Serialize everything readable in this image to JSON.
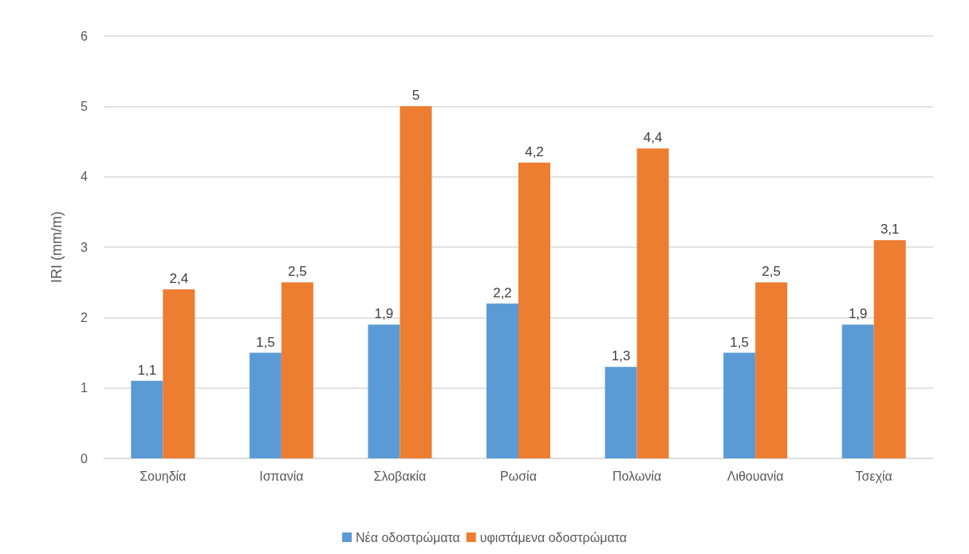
{
  "chart_data": {
    "type": "bar",
    "categories": [
      "Σουηδία",
      "Ισπανία",
      "Σλοβακία",
      "Ρωσία",
      "Πολωνία",
      "Λιθουανία",
      "Τσεχία"
    ],
    "ylabel": "IRI (mm/m)",
    "series": [
      {
        "name": "Νέα οδοστρώματα",
        "color": "#5b9bd5",
        "values": [
          1.1,
          1.5,
          1.9,
          2.2,
          1.3,
          1.5,
          1.9
        ],
        "value_labels": [
          "1,1",
          "1,5",
          "1,9",
          "2,2",
          "1,3",
          "1,5",
          "1,9"
        ]
      },
      {
        "name": "υφιστάμενα οδοστρώματα",
        "color": "#ed7d31",
        "values": [
          2.4,
          2.5,
          5,
          4.2,
          4.4,
          2.5,
          3.1
        ],
        "value_labels": [
          "2,4",
          "2,5",
          "5",
          "4,2",
          "4,4",
          "2,5",
          "3,1"
        ]
      }
    ],
    "ylim": [
      0,
      6
    ],
    "yticks": [
      0,
      1,
      2,
      3,
      4,
      5,
      6
    ],
    "grid": "y",
    "legend": "bottom"
  }
}
